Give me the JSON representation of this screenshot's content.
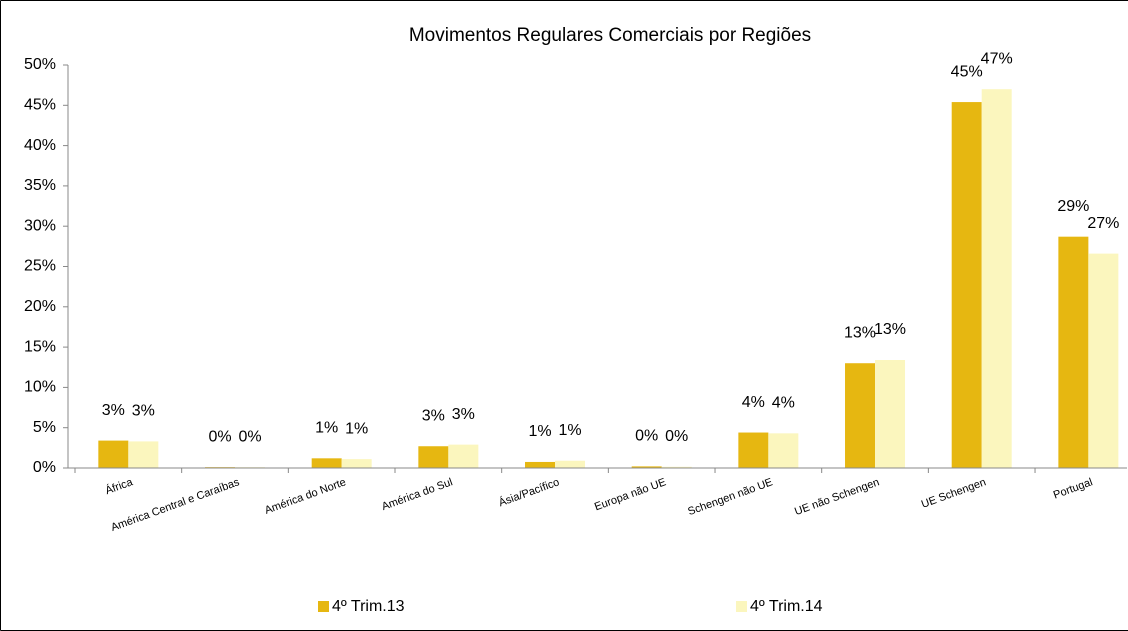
{
  "chart_data": {
    "type": "bar",
    "title": "Movimentos Regulares Comerciais por Regiões",
    "categories": [
      "África",
      "América Central e Caraíbas",
      "América do Norte",
      "América do Sul",
      "Ásia/Pacífico",
      "Europa não UE",
      "Schengen não UE",
      "UE não Schengen",
      "UE Schengen",
      "Portugal"
    ],
    "series": [
      {
        "name": "4º Trim.13",
        "color": "#e6b711",
        "values": [
          3.4,
          0.1,
          1.2,
          2.7,
          0.75,
          0.2,
          4.4,
          13.0,
          45.4,
          28.7
        ],
        "value_labels": [
          "3%",
          "0%",
          "1%",
          "3%",
          "1%",
          "0%",
          "4%",
          "13%",
          "45%",
          "29%"
        ]
      },
      {
        "name": "4º Trim.14",
        "color": "#fbf6be",
        "values": [
          3.3,
          0.1,
          1.1,
          2.9,
          0.9,
          0.15,
          4.3,
          13.4,
          47.0,
          26.6
        ],
        "value_labels": [
          "3%",
          "0%",
          "1%",
          "3%",
          "1%",
          "0%",
          "4%",
          "13%",
          "47%",
          "27%"
        ]
      }
    ],
    "ylim": [
      0,
      50
    ],
    "yticks": [
      {
        "value": 0,
        "label": "0%"
      },
      {
        "value": 5,
        "label": "5%"
      },
      {
        "value": 10,
        "label": "10%"
      },
      {
        "value": 15,
        "label": "15%"
      },
      {
        "value": 20,
        "label": "20%"
      },
      {
        "value": 25,
        "label": "25%"
      },
      {
        "value": 30,
        "label": "30%"
      },
      {
        "value": 35,
        "label": "35%"
      },
      {
        "value": 40,
        "label": "40%"
      },
      {
        "value": 45,
        "label": "45%"
      },
      {
        "value": 50,
        "label": "50%"
      }
    ],
    "legend": "bottom"
  }
}
